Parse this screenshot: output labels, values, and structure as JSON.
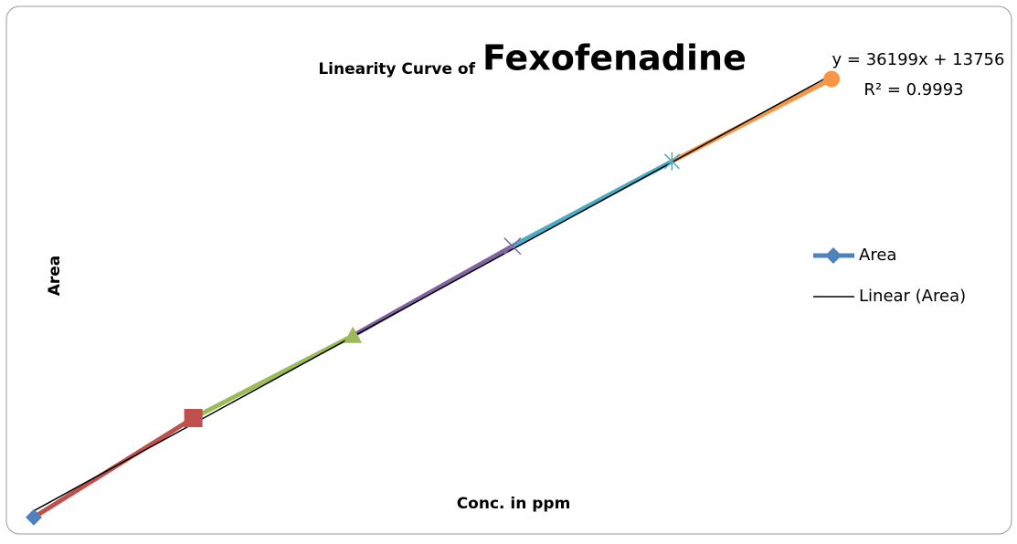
{
  "chart_data": {
    "type": "line",
    "title_parts": [
      "Linearity Curve of",
      "Fexofenadine"
    ],
    "x_label": "Conc. in ppm",
    "y_label": "Area",
    "x": [
      1,
      2,
      3,
      4,
      5,
      6
    ],
    "xlim": [
      0.9,
      6.1
    ],
    "ylim": [
      45000,
      235000
    ],
    "series": [
      {
        "name": "Area",
        "color": "#4f81bd",
        "values": [
          50000,
          91000,
          125000,
          162000,
          197000,
          231000
        ],
        "point_colors": [
          "#4f81bd",
          "#c0504d",
          "#9bbb59",
          "#8064a2",
          "#4bacc6",
          "#f79646"
        ],
        "markers": [
          "diamond",
          "square",
          "triangle",
          "x",
          "star",
          "circle"
        ]
      }
    ],
    "trendline": {
      "name": "Linear (Area)",
      "color": "#000000",
      "equation": "y = 36199x + 13756",
      "r2": "R² = 0.9993"
    },
    "legend": "right"
  }
}
